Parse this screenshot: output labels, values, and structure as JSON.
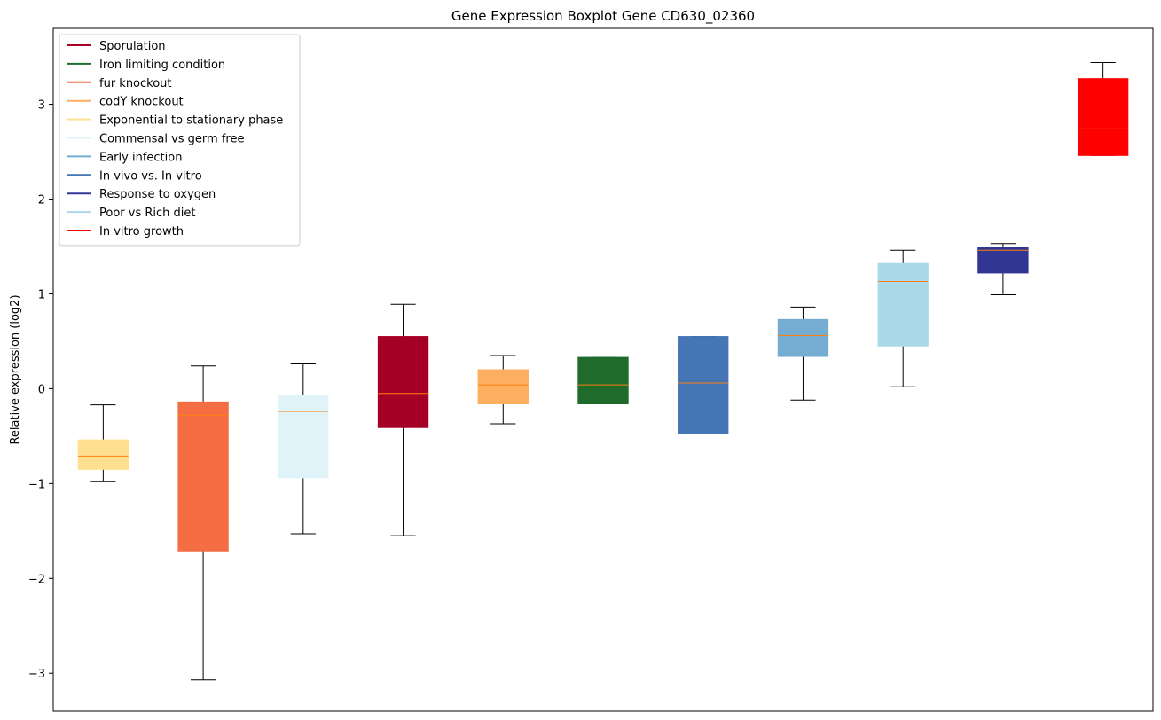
{
  "chart_data": {
    "type": "boxplot",
    "title": "Gene Expression Boxplot Gene CD630_02360",
    "xlabel": "",
    "ylabel": "Relative expression (log2)",
    "ylim": [
      -3.4,
      3.8
    ],
    "yticks": [
      -3,
      -2,
      -1,
      0,
      1,
      2,
      3
    ],
    "ytick_labels": [
      "−3",
      "−2",
      "−1",
      "0",
      "1",
      "2",
      "3"
    ],
    "grid": false,
    "legend_position": "top-left",
    "legend": [
      {
        "label": "Sporulation",
        "color": "#a50026"
      },
      {
        "label": "Iron limiting condition",
        "color": "#1e6b2b"
      },
      {
        "label": "fur knockout",
        "color": "#f46d43"
      },
      {
        "label": "codY knockout",
        "color": "#fdae61"
      },
      {
        "label": "Exponential to stationary phase",
        "color": "#fee090"
      },
      {
        "label": "Commensal vs germ free",
        "color": "#e0f3f8"
      },
      {
        "label": "Early infection",
        "color": "#74add1"
      },
      {
        "label": "In vivo vs. In vitro",
        "color": "#4575b4"
      },
      {
        "label": "Response to oxygen",
        "color": "#313695"
      },
      {
        "label": "Poor vs Rich diet",
        "color": "#abd9e9"
      },
      {
        "label": "In vitro growth",
        "color": "#ff0000"
      }
    ],
    "boxes": [
      {
        "name": "Exponential to stationary phase",
        "color": "#fee090",
        "whisker_low": -0.98,
        "q1": -0.85,
        "median": -0.71,
        "q3": -0.54,
        "whisker_high": -0.17
      },
      {
        "name": "fur knockout",
        "color": "#f46d43",
        "whisker_low": -3.07,
        "q1": -1.71,
        "median": -0.28,
        "q3": -0.14,
        "whisker_high": 0.24
      },
      {
        "name": "Commensal vs germ free",
        "color": "#e0f3f8",
        "whisker_low": -1.53,
        "q1": -0.94,
        "median": -0.24,
        "q3": -0.07,
        "whisker_high": 0.27
      },
      {
        "name": "Sporulation",
        "color": "#a50026",
        "whisker_low": -1.55,
        "q1": -0.41,
        "median": -0.05,
        "q3": 0.55,
        "whisker_high": 0.89
      },
      {
        "name": "codY knockout",
        "color": "#fdae61",
        "whisker_low": -0.37,
        "q1": -0.16,
        "median": 0.04,
        "q3": 0.2,
        "whisker_high": 0.35
      },
      {
        "name": "Iron limiting condition",
        "color": "#1e6b2b",
        "whisker_low": -0.16,
        "q1": -0.16,
        "median": 0.04,
        "q3": 0.33,
        "whisker_high": 0.33
      },
      {
        "name": "In vivo vs. In vitro",
        "color": "#4575b4",
        "whisker_low": -0.47,
        "q1": -0.47,
        "median": 0.06,
        "q3": 0.55,
        "whisker_high": 0.55
      },
      {
        "name": "Early infection",
        "color": "#74add1",
        "whisker_low": -0.12,
        "q1": 0.34,
        "median": 0.56,
        "q3": 0.73,
        "whisker_high": 0.86
      },
      {
        "name": "Poor vs Rich diet",
        "color": "#abd9e9",
        "whisker_low": 0.02,
        "q1": 0.45,
        "median": 1.13,
        "q3": 1.32,
        "whisker_high": 1.46
      },
      {
        "name": "Response to oxygen",
        "color": "#313695",
        "whisker_low": 0.99,
        "q1": 1.22,
        "median": 1.46,
        "q3": 1.49,
        "whisker_high": 1.53
      },
      {
        "name": "In vitro growth",
        "color": "#ff0000",
        "whisker_low": 2.46,
        "q1": 2.46,
        "median": 2.74,
        "q3": 3.27,
        "whisker_high": 3.44
      }
    ],
    "median_color": "#ff7f0e"
  }
}
